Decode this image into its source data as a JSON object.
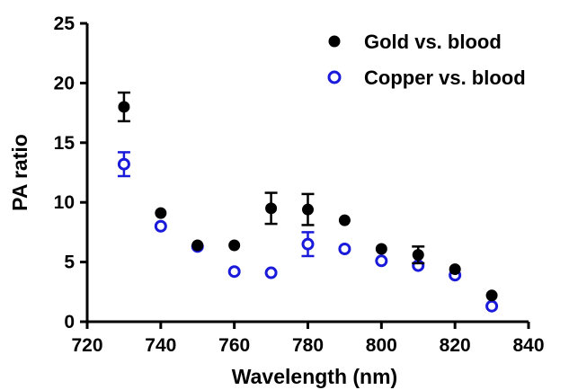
{
  "chart_data": {
    "type": "scatter",
    "xlabel": "Wavelength (nm)",
    "ylabel": "PA ratio",
    "xlim": [
      720,
      840
    ],
    "ylim": [
      0,
      25
    ],
    "xticks": [
      720,
      740,
      760,
      780,
      800,
      820,
      840
    ],
    "yticks": [
      0,
      5,
      10,
      15,
      20,
      25
    ],
    "grid": false,
    "legend_position": "top-right",
    "series": [
      {
        "name": "Gold vs. blood",
        "marker": "filled-circle",
        "color": "#000000",
        "x": [
          730,
          740,
          750,
          760,
          770,
          780,
          790,
          800,
          810,
          820,
          830
        ],
        "y": [
          18.0,
          9.1,
          6.4,
          6.4,
          9.5,
          9.4,
          8.5,
          6.1,
          5.6,
          4.4,
          2.2
        ],
        "error": [
          1.2,
          0.3,
          0.2,
          0.2,
          1.3,
          1.3,
          0.3,
          0.2,
          0.7,
          0.2,
          0.15
        ]
      },
      {
        "name": "Copper vs. blood",
        "marker": "open-circle",
        "color": "#1a1adb",
        "x": [
          730,
          740,
          750,
          760,
          770,
          780,
          790,
          800,
          810,
          820,
          830
        ],
        "y": [
          13.2,
          8.0,
          6.3,
          4.2,
          4.1,
          6.5,
          6.1,
          5.1,
          4.7,
          3.9,
          1.3
        ],
        "error": [
          1.0,
          0.3,
          0.2,
          0.3,
          0.2,
          1.0,
          0.3,
          0.3,
          0.3,
          0.2,
          0.2
        ]
      }
    ]
  }
}
